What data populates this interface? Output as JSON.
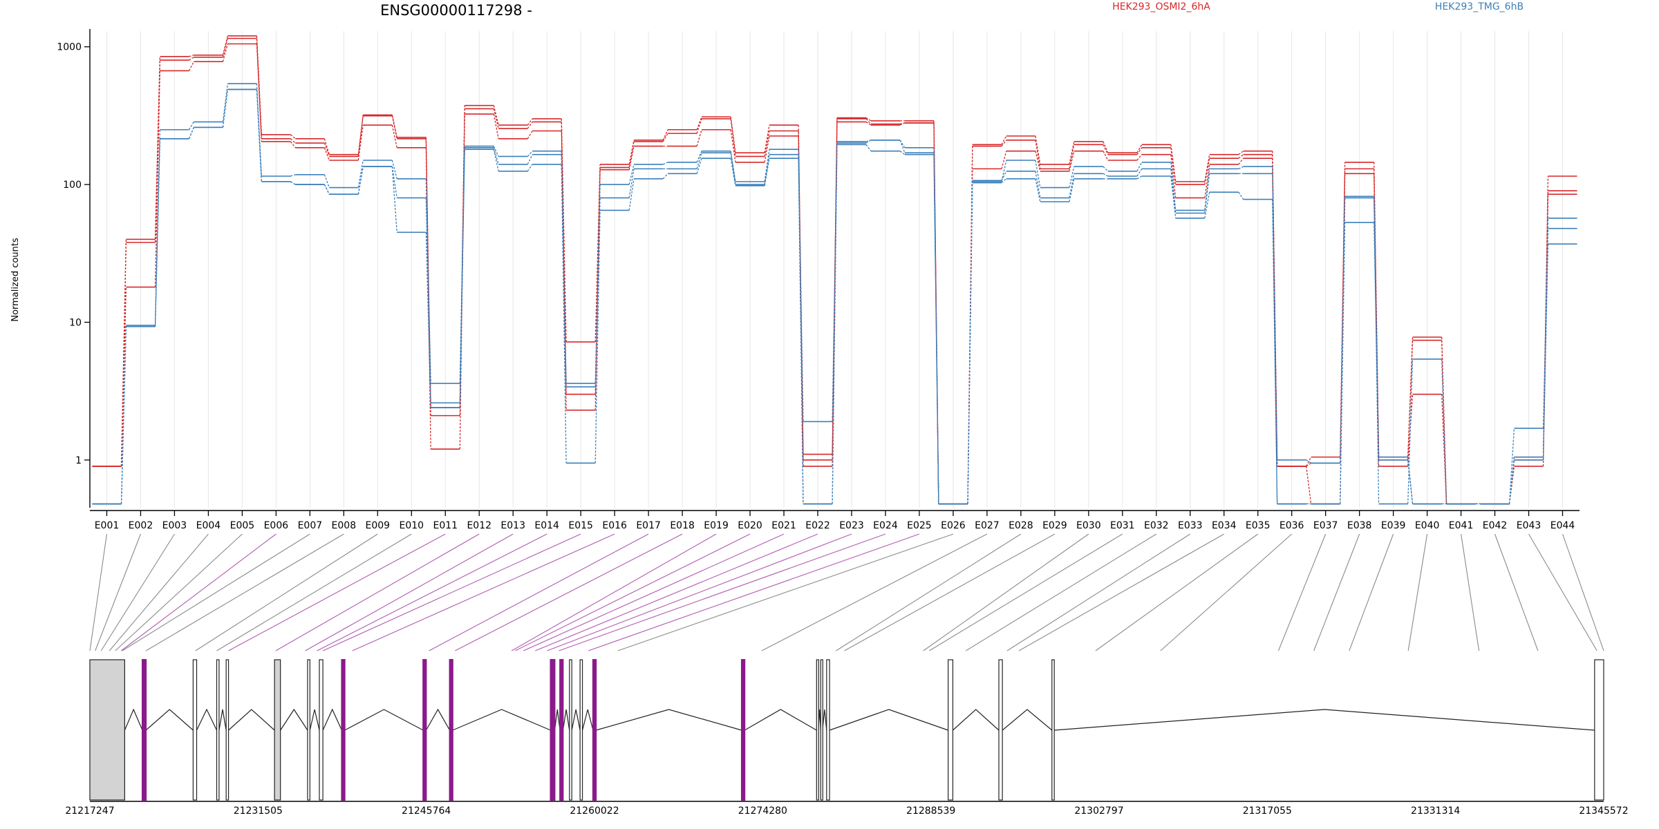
{
  "title": "ENSG00000117298 -",
  "ylabel": "Normalized counts",
  "legend": [
    {
      "label": "HEK293_OSMI2_6hA",
      "color": "#d62728"
    },
    {
      "label": "HEK293_TMG_6hB",
      "color": "#3a7fba"
    }
  ],
  "colors": {
    "highlight_exon": "#8b1a8b",
    "exon_fill": "#d3d3d3",
    "connector_normal": "#8a8a8a",
    "connector_highlight": "#b05bb0",
    "grid": "#e6e6e6"
  },
  "chart_data": {
    "type": "line",
    "yscale": "log",
    "ylim": [
      0.45,
      1300
    ],
    "yticks": [
      1,
      10,
      100,
      1000
    ],
    "yticklabels": [
      "1",
      "10",
      "100",
      "1000"
    ],
    "categories": [
      "E001",
      "E002",
      "E003",
      "E004",
      "E005",
      "E006",
      "E007",
      "E008",
      "E009",
      "E010",
      "E011",
      "E012",
      "E013",
      "E014",
      "E015",
      "E016",
      "E017",
      "E018",
      "E019",
      "E020",
      "E021",
      "E022",
      "E023",
      "E024",
      "E025",
      "E026",
      "E027",
      "E028",
      "E029",
      "E030",
      "E031",
      "E032",
      "E033",
      "E034",
      "E035",
      "E036",
      "E037",
      "E038",
      "E039",
      "E040",
      "E041",
      "E042",
      "E043",
      "E044"
    ],
    "series": [
      {
        "group": 0,
        "values": [
          0.9,
          40,
          850,
          870,
          1200,
          230,
          215,
          165,
          320,
          220,
          1.2,
          375,
          270,
          300,
          7.2,
          140,
          210,
          250,
          310,
          170,
          270,
          1.1,
          305,
          290,
          290,
          0.48,
          195,
          225,
          140,
          205,
          170,
          195,
          105,
          165,
          175,
          0.9,
          1.05,
          145,
          1.05,
          7.8,
          0.48,
          0.48,
          1.05,
          115
        ]
      },
      {
        "group": 0,
        "values": [
          0.9,
          38,
          800,
          840,
          1150,
          215,
          200,
          160,
          315,
          215,
          2.4,
          355,
          255,
          285,
          3.0,
          133,
          205,
          235,
          300,
          160,
          245,
          1.0,
          300,
          275,
          280,
          0.48,
          190,
          210,
          130,
          195,
          165,
          185,
          100,
          155,
          165,
          0.9,
          0.95,
          130,
          1.0,
          7.4,
          0.48,
          0.48,
          1.0,
          90
        ]
      },
      {
        "group": 0,
        "values": [
          0.9,
          18,
          670,
          780,
          1050,
          205,
          185,
          150,
          270,
          185,
          2.1,
          325,
          215,
          245,
          2.3,
          128,
          190,
          190,
          250,
          145,
          225,
          0.9,
          285,
          270,
          280,
          0.48,
          130,
          175,
          125,
          175,
          150,
          165,
          80,
          140,
          155,
          0.9,
          0.48,
          120,
          0.9,
          3.0,
          0.48,
          0.48,
          0.9,
          85
        ]
      },
      {
        "group": 1,
        "values": [
          0.48,
          9.5,
          250,
          285,
          540,
          115,
          118,
          95,
          150,
          110,
          3.6,
          190,
          160,
          175,
          3.6,
          100,
          140,
          145,
          175,
          105,
          180,
          1.9,
          200,
          210,
          185,
          0.48,
          105,
          150,
          95,
          135,
          125,
          145,
          65,
          130,
          135,
          1.0,
          0.95,
          82,
          0.48,
          5.4,
          0.48,
          0.48,
          1.7,
          57
        ]
      },
      {
        "group": 1,
        "values": [
          0.48,
          9.3,
          215,
          260,
          490,
          105,
          100,
          85,
          135,
          80,
          2.6,
          180,
          125,
          140,
          0.95,
          65,
          110,
          120,
          155,
          98,
          155,
          0.48,
          195,
          175,
          165,
          0.48,
          103,
          110,
          75,
          110,
          110,
          115,
          57,
          88,
          78,
          0.48,
          0.48,
          53,
          1.05,
          0.48,
          0.48,
          0.48,
          1.05,
          37
        ]
      },
      {
        "group": 1,
        "values": [
          0.48,
          9.3,
          215,
          260,
          490,
          105,
          100,
          85,
          135,
          45,
          2.4,
          185,
          140,
          165,
          3.4,
          80,
          130,
          130,
          170,
          100,
          165,
          0.48,
          205,
          210,
          170,
          0.48,
          107,
          125,
          80,
          120,
          115,
          130,
          62,
          120,
          120,
          0.48,
          0.48,
          80,
          1.0,
          0.48,
          0.48,
          0.48,
          1.0,
          48
        ]
      }
    ]
  },
  "gene_model": {
    "genomic_range": [
      21217247,
      21345572
    ],
    "axis_ticks": [
      {
        "pos": 21217247,
        "label": "21217247"
      },
      {
        "pos": 21231505,
        "label": "21231505"
      },
      {
        "pos": 21245764,
        "label": "21245764"
      },
      {
        "pos": 21260022,
        "label": "21260022"
      },
      {
        "pos": 21274280,
        "label": "21274280"
      },
      {
        "pos": 21288539,
        "label": "21288539"
      },
      {
        "pos": 21302797,
        "label": "21302797"
      },
      {
        "pos": 21317055,
        "label": "21317055"
      },
      {
        "pos": 21331314,
        "label": "21331314"
      },
      {
        "pos": 21345572,
        "label": "21345572"
      }
    ],
    "exon_genomic_pos": [
      21217247,
      21217700,
      21218200,
      21218900,
      21219400,
      21219900,
      21220000,
      21222000,
      21226200,
      21228000,
      21229000,
      21233000,
      21235500,
      21236500,
      21237000,
      21239500,
      21246000,
      21248200,
      21253000,
      21253300,
      21254000,
      21255000,
      21256000,
      21257000,
      21259500,
      21262000,
      21274200,
      21280500,
      21281200,
      21287900,
      21288400,
      21291500,
      21295000,
      21296000,
      21302500,
      21308000,
      21318000,
      21321000,
      21324000,
      21329000,
      21335000,
      21340000,
      21345000,
      21345572
    ],
    "exons": [
      {
        "start": 21217247,
        "end": 21220200,
        "shaded": true,
        "highlight": false
      },
      {
        "start": 21221700,
        "end": 21222000,
        "shaded": false,
        "highlight": true
      },
      {
        "start": 21226000,
        "end": 21226300,
        "shaded": false,
        "highlight": false
      },
      {
        "start": 21228000,
        "end": 21228200,
        "shaded": false,
        "highlight": false
      },
      {
        "start": 21228800,
        "end": 21229000,
        "shaded": false,
        "highlight": false
      },
      {
        "start": 21232900,
        "end": 21233400,
        "shaded": true,
        "highlight": false
      },
      {
        "start": 21235700,
        "end": 21235900,
        "shaded": false,
        "highlight": false
      },
      {
        "start": 21236700,
        "end": 21237000,
        "shaded": false,
        "highlight": false
      },
      {
        "start": 21238600,
        "end": 21238850,
        "shaded": false,
        "highlight": true
      },
      {
        "start": 21245500,
        "end": 21245750,
        "shaded": false,
        "highlight": true
      },
      {
        "start": 21247750,
        "end": 21248000,
        "shaded": false,
        "highlight": true
      },
      {
        "start": 21256300,
        "end": 21256650,
        "shaded": false,
        "highlight": true
      },
      {
        "start": 21257100,
        "end": 21257350,
        "shaded": false,
        "highlight": true
      },
      {
        "start": 21257900,
        "end": 21258100,
        "shaded": false,
        "highlight": false
      },
      {
        "start": 21258800,
        "end": 21259000,
        "shaded": false,
        "highlight": false
      },
      {
        "start": 21259900,
        "end": 21260150,
        "shaded": false,
        "highlight": true
      },
      {
        "start": 21272500,
        "end": 21272750,
        "shaded": false,
        "highlight": true
      },
      {
        "start": 21278850,
        "end": 21279000,
        "shaded": false,
        "highlight": false
      },
      {
        "start": 21279200,
        "end": 21279350,
        "shaded": false,
        "highlight": false
      },
      {
        "start": 21279700,
        "end": 21279950,
        "shaded": false,
        "highlight": false
      },
      {
        "start": 21290000,
        "end": 21290400,
        "shaded": false,
        "highlight": false
      },
      {
        "start": 21294300,
        "end": 21294600,
        "shaded": false,
        "highlight": false
      },
      {
        "start": 21298800,
        "end": 21299000,
        "shaded": false,
        "highlight": false
      },
      {
        "start": 21344800,
        "end": 21345572,
        "shaded": false,
        "highlight": false
      }
    ],
    "highlight_exon_indices": [
      5,
      10,
      11,
      12,
      13,
      14,
      15,
      16,
      17,
      18,
      19,
      20,
      21,
      22,
      23,
      24
    ]
  }
}
